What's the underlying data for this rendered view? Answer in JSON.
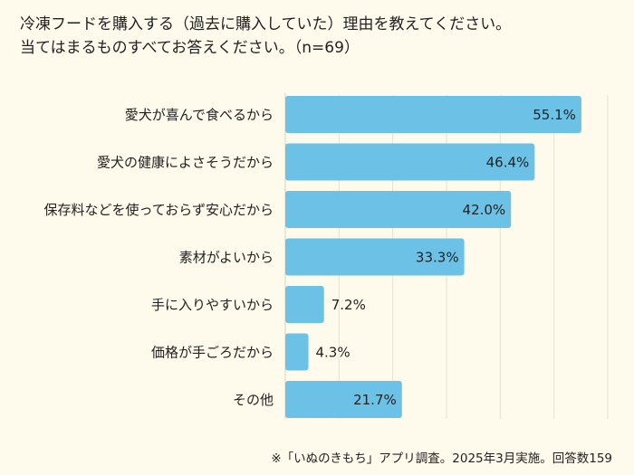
{
  "title_lines": [
    "冷凍フードを購入する（過去に購入していた）理由を教えてください。",
    "当てはまるものすべてお答えください。（n=69）"
  ],
  "footnote": "※「いぬのきもち」アプリ調査。2025年3月実施。回答数159",
  "colors": {
    "bar": "#6bc2e6",
    "background": "#fefaec",
    "grid": "#e6e2d2"
  },
  "chart_data": {
    "type": "bar",
    "orientation": "horizontal",
    "title": "冷凍フードを購入する（過去に購入していた）理由を教えてください。当てはまるものすべてお答えください。（n=69）",
    "categories": [
      "愛犬が喜んで食べるから",
      "愛犬の健康によさそうだから",
      "保存料などを使っておらず安心だから",
      "素材がよいから",
      "手に入りやすいから",
      "価格が手ごろだから",
      "その他"
    ],
    "values": [
      55.1,
      46.4,
      42.0,
      33.3,
      7.2,
      4.3,
      21.7
    ],
    "value_labels": [
      "55.1%",
      "46.4%",
      "42.0%",
      "33.3%",
      "7.2%",
      "4.3%",
      "21.7%"
    ],
    "unit": "%",
    "xlim": [
      0,
      60
    ],
    "grid_step": 10,
    "grid": true,
    "xlabel": "",
    "ylabel": ""
  }
}
